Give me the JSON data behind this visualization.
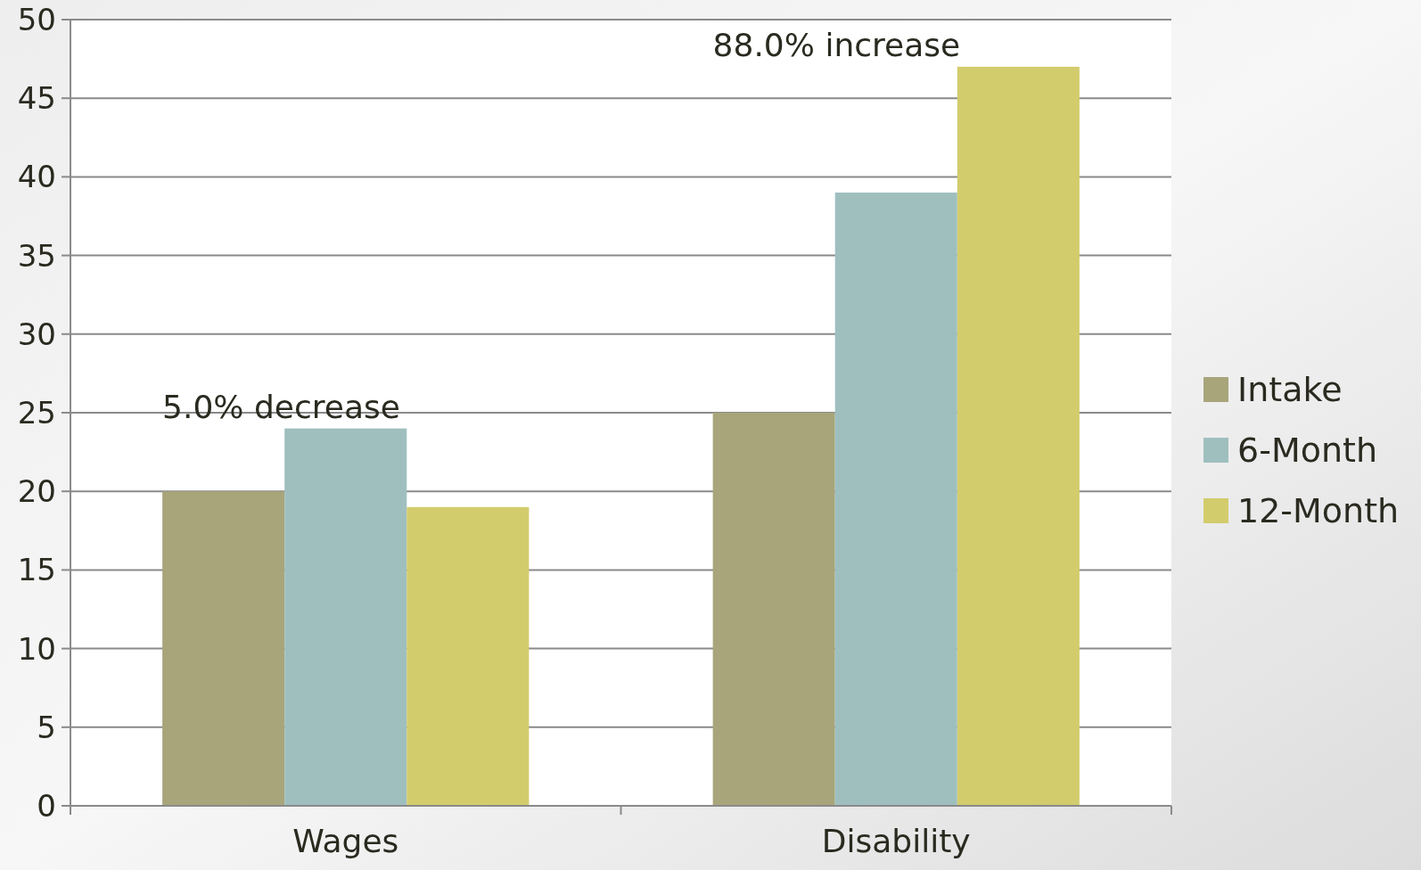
{
  "chart_data": {
    "type": "bar",
    "categories": [
      "Wages",
      "Disability"
    ],
    "series": [
      {
        "name": "Intake",
        "color": "#a8a57b",
        "values": [
          20,
          25
        ]
      },
      {
        "name": "6-Month",
        "color": "#9fbfbf",
        "values": [
          24,
          39
        ]
      },
      {
        "name": "12-Month",
        "color": "#d2cc6d",
        "values": [
          19,
          47
        ]
      }
    ],
    "ylim": [
      0,
      50
    ],
    "yticks": [
      0,
      5,
      10,
      15,
      20,
      25,
      30,
      35,
      40,
      45,
      50
    ],
    "grid": "y",
    "legend": "right",
    "annotations": [
      "5.0% decrease",
      "88.0% increase"
    ]
  }
}
